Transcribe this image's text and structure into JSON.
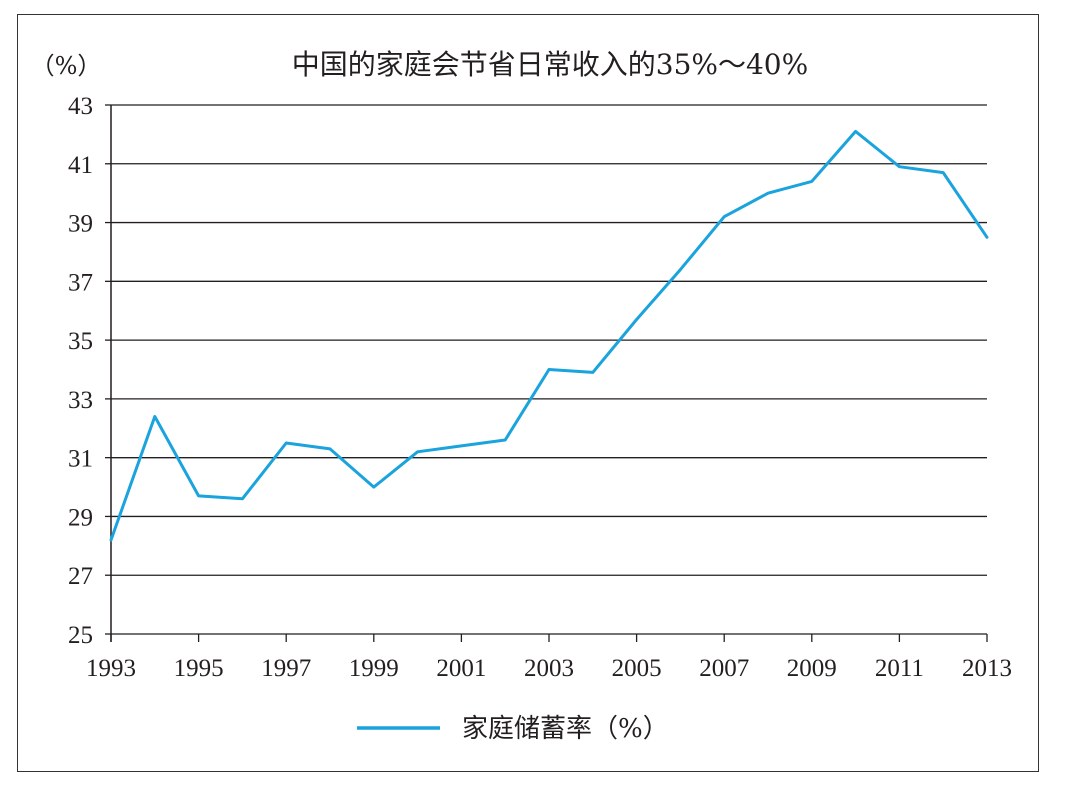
{
  "chart_data": {
    "type": "line",
    "title": "中国的家庭会节省日常收入的35%～40%",
    "ylabel": "（%）",
    "xlabel": "",
    "ylim": [
      25,
      43
    ],
    "xlim": [
      1993,
      2013
    ],
    "y_ticks": [
      "25",
      "27",
      "29",
      "31",
      "33",
      "35",
      "37",
      "39",
      "41",
      "43"
    ],
    "x_ticks": [
      "1993",
      "1995",
      "1997",
      "1999",
      "2001",
      "2003",
      "2005",
      "2007",
      "2009",
      "2011",
      "2013"
    ],
    "grid": "horizontal",
    "legend_position": "bottom",
    "series": [
      {
        "name": "家庭储蓄率（%）",
        "color": "#1aa3dd",
        "x": [
          1993,
          1994,
          1995,
          1996,
          1997,
          1998,
          1999,
          2000,
          2001,
          2002,
          2003,
          2004,
          2005,
          2006,
          2007,
          2008,
          2009,
          2010,
          2011,
          2012,
          2013
        ],
        "values": [
          28.2,
          32.4,
          29.7,
          29.6,
          31.5,
          31.3,
          30.0,
          31.2,
          31.4,
          31.6,
          34.0,
          33.9,
          35.7,
          37.4,
          39.2,
          40.0,
          40.4,
          42.1,
          40.9,
          40.7,
          38.5
        ]
      }
    ]
  }
}
